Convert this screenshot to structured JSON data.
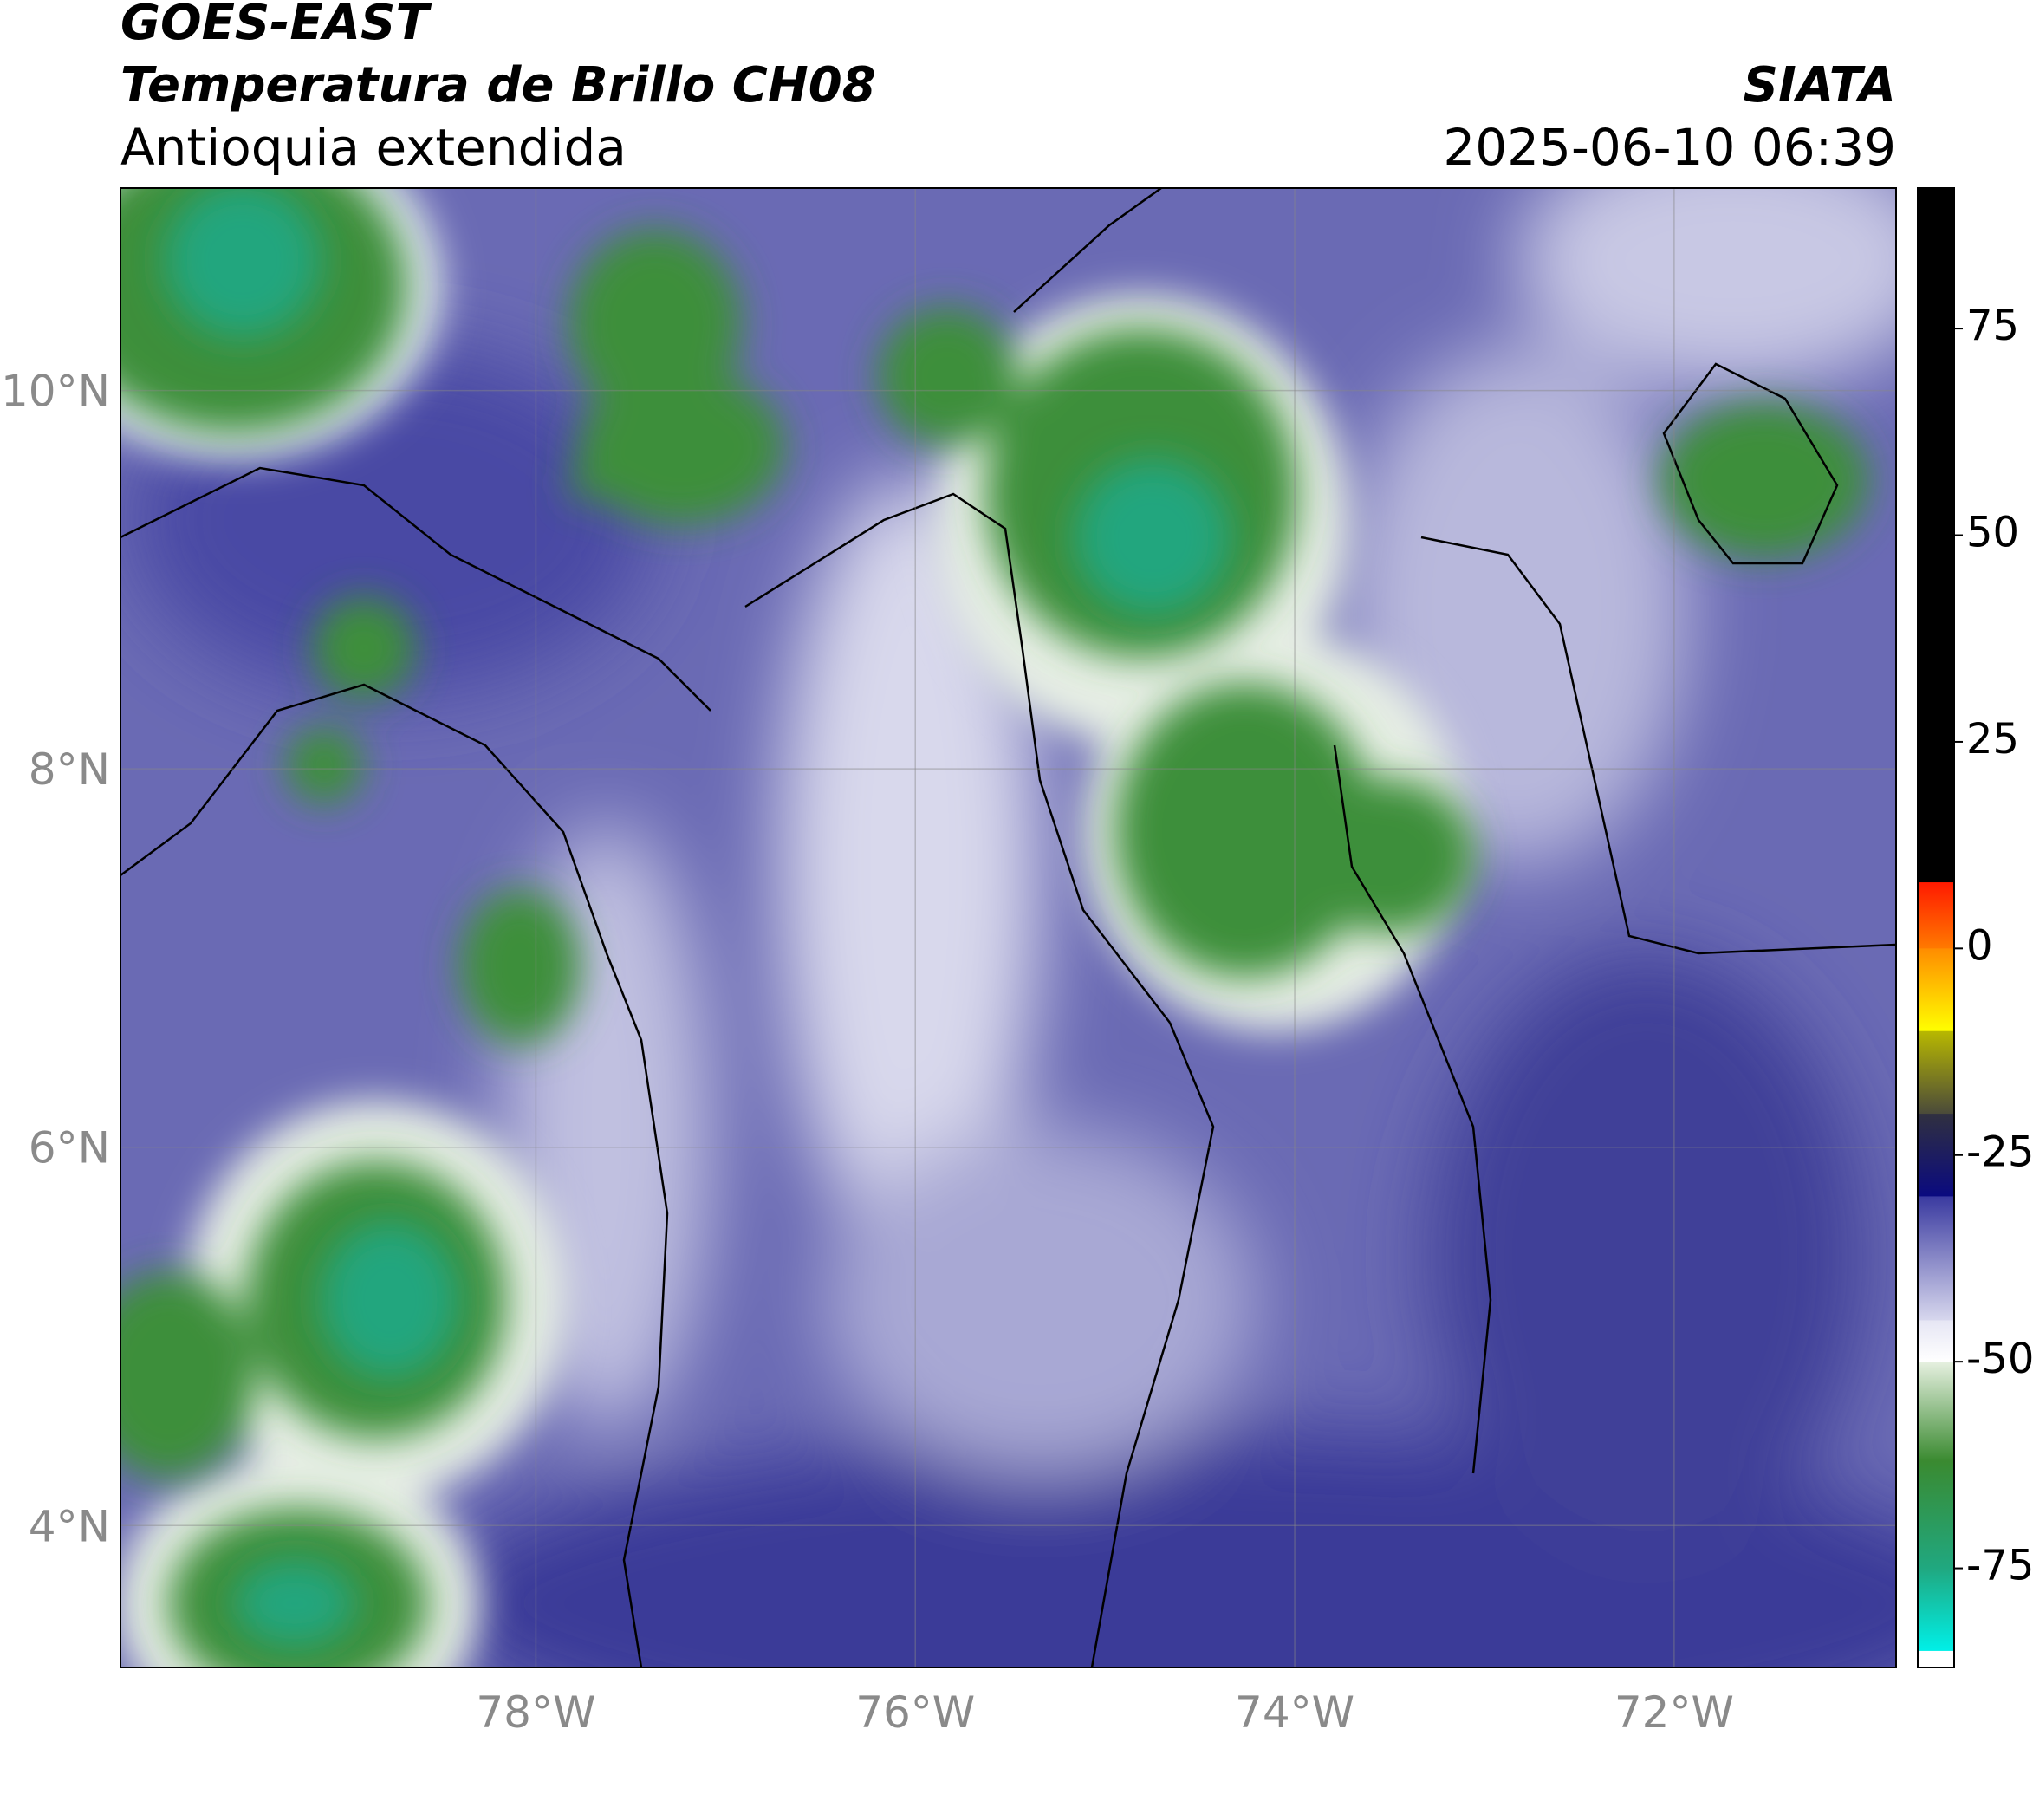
{
  "header": {
    "title": "GOES-EAST",
    "subtitle": "Temperatura de Brillo CH08",
    "region": "Antioquia extendida",
    "source": "SIATA",
    "datetime": "2025-06-10 06:39"
  },
  "map": {
    "xlim": [
      -80.19,
      -70.83
    ],
    "ylim": [
      3.25,
      11.07
    ],
    "xticks": [
      {
        "value": -78,
        "label": "78°W"
      },
      {
        "value": -76,
        "label": "76°W"
      },
      {
        "value": -74,
        "label": "74°W"
      },
      {
        "value": -72,
        "label": "72°W"
      }
    ],
    "yticks": [
      {
        "value": 4,
        "label": "4°N"
      },
      {
        "value": 6,
        "label": "6°N"
      },
      {
        "value": 8,
        "label": "8°N"
      },
      {
        "value": 10,
        "label": "10°N"
      }
    ],
    "grid": true
  },
  "colorbar": {
    "clim": [
      -87,
      92
    ],
    "ticks": [
      -75,
      -50,
      -25,
      0,
      25,
      50,
      75
    ],
    "bands": [
      {
        "from": 8,
        "to": 92,
        "colors": [
          "#000000",
          "#000000"
        ]
      },
      {
        "from": 0,
        "to": 8,
        "colors": [
          "#ff7a00",
          "#ff1a00"
        ]
      },
      {
        "from": -10,
        "to": 0,
        "colors": [
          "#ffff00",
          "#ff8c00"
        ]
      },
      {
        "from": -20,
        "to": -10,
        "colors": [
          "#4a4a3a",
          "#b8b800"
        ]
      },
      {
        "from": -30,
        "to": -20,
        "colors": [
          "#0a0a80",
          "#303040"
        ]
      },
      {
        "from": -45,
        "to": -30,
        "colors": [
          "#d8d8ee",
          "#3a3aa0"
        ]
      },
      {
        "from": -50,
        "to": -45,
        "colors": [
          "#ffffff",
          "#e6e6f4"
        ]
      },
      {
        "from": -62,
        "to": -50,
        "colors": [
          "#3a8a30",
          "#e6f0e0"
        ]
      },
      {
        "from": -75,
        "to": -62,
        "colors": [
          "#20a880",
          "#3a8a30"
        ]
      },
      {
        "from": -85,
        "to": -75,
        "colors": [
          "#00f0e8",
          "#20a880"
        ]
      },
      {
        "from": -87,
        "to": -85,
        "colors": [
          "#ffffff",
          "#ffffff"
        ]
      }
    ]
  }
}
